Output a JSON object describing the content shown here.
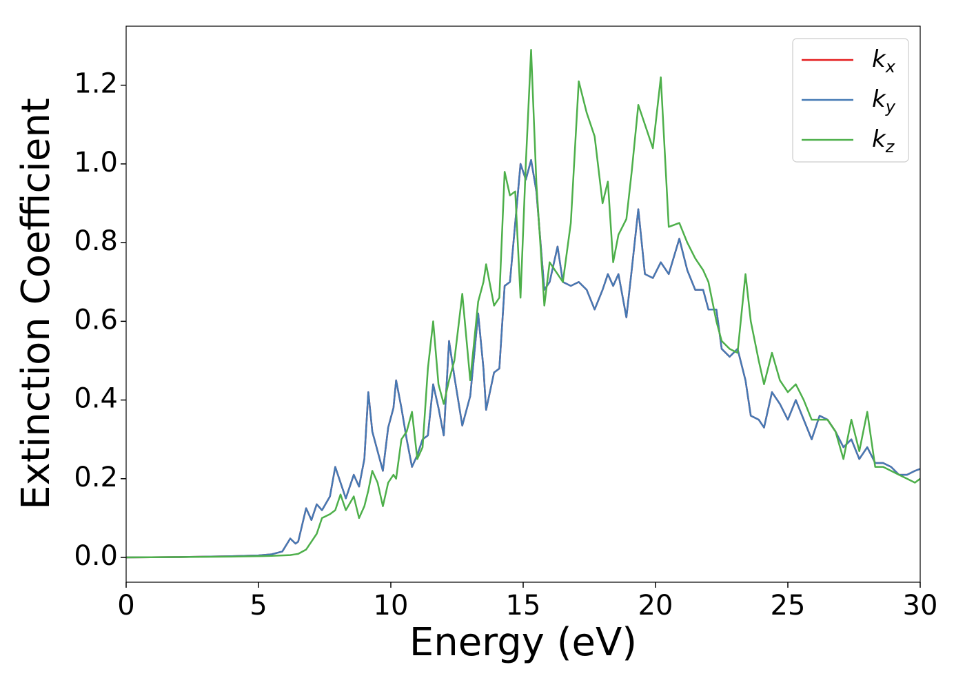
{
  "chart_data": {
    "type": "line",
    "xlabel": "Energy (eV)",
    "ylabel": "Extinction Coefficient",
    "xlim": [
      0,
      30
    ],
    "ylim": [
      -0.063,
      1.35
    ],
    "xticks": [
      0,
      5,
      10,
      15,
      20,
      25,
      30
    ],
    "yticks": [
      {
        "value": 0,
        "label": "0.0"
      },
      0.2,
      0.4,
      0.6,
      0.8,
      {
        "value": 1,
        "label": "1.0"
      },
      1.2
    ],
    "legend": "upper right",
    "x": [
      0,
      2,
      4,
      5,
      5.5,
      5.9,
      6.2,
      6.4,
      6.5,
      6.8,
      7.0,
      7.2,
      7.4,
      7.7,
      7.9,
      8.1,
      8.3,
      8.6,
      8.8,
      9.0,
      9.15,
      9.3,
      9.5,
      9.7,
      9.9,
      10.1,
      10.2,
      10.4,
      10.6,
      10.8,
      11.0,
      11.2,
      11.4,
      11.6,
      11.8,
      12.0,
      12.2,
      12.4,
      12.7,
      13.0,
      13.3,
      13.5,
      13.6,
      13.9,
      14.1,
      14.3,
      14.5,
      14.7,
      14.9,
      15.1,
      15.3,
      15.5,
      15.8,
      16.0,
      16.3,
      16.5,
      16.8,
      17.1,
      17.4,
      17.7,
      18.0,
      18.2,
      18.4,
      18.6,
      18.9,
      19.1,
      19.35,
      19.6,
      19.9,
      20.2,
      20.5,
      20.9,
      21.2,
      21.5,
      21.8,
      22.0,
      22.3,
      22.5,
      22.8,
      23.1,
      23.4,
      23.6,
      23.9,
      24.1,
      24.4,
      24.7,
      25.0,
      25.3,
      25.6,
      25.9,
      26.2,
      26.5,
      26.8,
      27.1,
      27.4,
      27.7,
      28.0,
      28.3,
      28.6,
      28.9,
      29.2,
      29.5,
      29.8,
      30
    ],
    "series": [
      {
        "name": "kx",
        "color": "#e41a1c",
        "values": [
          0,
          0.001,
          0.003,
          0.005,
          0.008,
          0.015,
          0.048,
          0.035,
          0.04,
          0.125,
          0.095,
          0.135,
          0.12,
          0.155,
          0.23,
          0.19,
          0.15,
          0.21,
          0.18,
          0.25,
          0.42,
          0.32,
          0.27,
          0.22,
          0.33,
          0.38,
          0.45,
          0.38,
          0.3,
          0.23,
          0.26,
          0.3,
          0.31,
          0.44,
          0.38,
          0.31,
          0.55,
          0.46,
          0.335,
          0.41,
          0.62,
          0.48,
          0.375,
          0.47,
          0.48,
          0.69,
          0.7,
          0.85,
          1.0,
          0.96,
          1.01,
          0.93,
          0.68,
          0.7,
          0.79,
          0.7,
          0.69,
          0.7,
          0.68,
          0.63,
          0.68,
          0.72,
          0.69,
          0.72,
          0.61,
          0.73,
          0.885,
          0.72,
          0.71,
          0.75,
          0.72,
          0.81,
          0.73,
          0.68,
          0.68,
          0.63,
          0.63,
          0.53,
          0.51,
          0.53,
          0.45,
          0.36,
          0.35,
          0.33,
          0.42,
          0.39,
          0.35,
          0.4,
          0.35,
          0.3,
          0.36,
          0.35,
          0.32,
          0.28,
          0.3,
          0.25,
          0.28,
          0.24,
          0.24,
          0.23,
          0.21,
          0.21,
          0.22,
          0.225
        ]
      },
      {
        "name": "ky",
        "color": "#4479b4",
        "values": [
          0,
          0.001,
          0.003,
          0.005,
          0.008,
          0.015,
          0.048,
          0.035,
          0.04,
          0.125,
          0.095,
          0.135,
          0.12,
          0.155,
          0.23,
          0.19,
          0.15,
          0.21,
          0.18,
          0.25,
          0.42,
          0.32,
          0.27,
          0.22,
          0.33,
          0.38,
          0.45,
          0.38,
          0.3,
          0.23,
          0.26,
          0.3,
          0.31,
          0.44,
          0.38,
          0.31,
          0.55,
          0.46,
          0.335,
          0.41,
          0.62,
          0.48,
          0.375,
          0.47,
          0.48,
          0.69,
          0.7,
          0.85,
          1.0,
          0.96,
          1.01,
          0.93,
          0.68,
          0.7,
          0.79,
          0.7,
          0.69,
          0.7,
          0.68,
          0.63,
          0.68,
          0.72,
          0.69,
          0.72,
          0.61,
          0.73,
          0.885,
          0.72,
          0.71,
          0.75,
          0.72,
          0.81,
          0.73,
          0.68,
          0.68,
          0.63,
          0.63,
          0.53,
          0.51,
          0.53,
          0.45,
          0.36,
          0.35,
          0.33,
          0.42,
          0.39,
          0.35,
          0.4,
          0.35,
          0.3,
          0.36,
          0.35,
          0.32,
          0.28,
          0.3,
          0.25,
          0.28,
          0.24,
          0.24,
          0.23,
          0.21,
          0.21,
          0.22,
          0.225
        ]
      },
      {
        "name": "kz",
        "color": "#4daf4a",
        "values": [
          0,
          0.001,
          0.002,
          0.003,
          0.004,
          0.005,
          0.006,
          0.008,
          0.009,
          0.02,
          0.04,
          0.06,
          0.1,
          0.11,
          0.12,
          0.16,
          0.12,
          0.155,
          0.1,
          0.13,
          0.17,
          0.22,
          0.19,
          0.13,
          0.19,
          0.21,
          0.2,
          0.3,
          0.32,
          0.37,
          0.25,
          0.28,
          0.48,
          0.6,
          0.44,
          0.39,
          0.45,
          0.5,
          0.67,
          0.45,
          0.65,
          0.7,
          0.745,
          0.64,
          0.66,
          0.98,
          0.92,
          0.93,
          0.66,
          1.0,
          1.29,
          0.95,
          0.64,
          0.75,
          0.72,
          0.7,
          0.85,
          1.21,
          1.13,
          1.07,
          0.9,
          0.955,
          0.75,
          0.82,
          0.86,
          0.98,
          1.15,
          1.1,
          1.04,
          1.22,
          0.84,
          0.85,
          0.8,
          0.76,
          0.73,
          0.7,
          0.6,
          0.55,
          0.53,
          0.52,
          0.72,
          0.6,
          0.5,
          0.44,
          0.52,
          0.45,
          0.42,
          0.44,
          0.4,
          0.35,
          0.35,
          0.35,
          0.32,
          0.25,
          0.35,
          0.27,
          0.37,
          0.23,
          0.23,
          0.22,
          0.21,
          0.2,
          0.19,
          0.2
        ]
      }
    ]
  }
}
